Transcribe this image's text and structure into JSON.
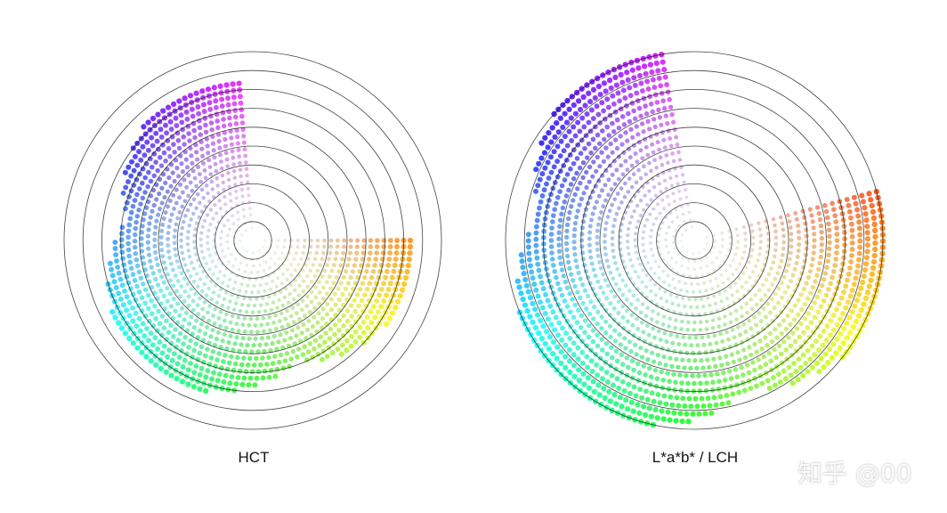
{
  "chart_data": [
    {
      "type": "scatter",
      "title": "HCT",
      "rings": 10,
      "gamut": {
        "start_hue": 30,
        "sweep_deg": 265,
        "min_r": 0.03,
        "max_r": 0.87,
        "point_rows": 24
      }
    },
    {
      "type": "scatter",
      "title": "L*a*b* / LCH",
      "rings": 10,
      "gamut": {
        "start_hue": 15,
        "sweep_deg": 275,
        "min_r": 0.03,
        "max_r": 1.0,
        "point_rows": 24
      }
    }
  ],
  "watermark": "知乎 @00",
  "colors": {
    "ring": "#222222",
    "background": "#ffffff"
  }
}
